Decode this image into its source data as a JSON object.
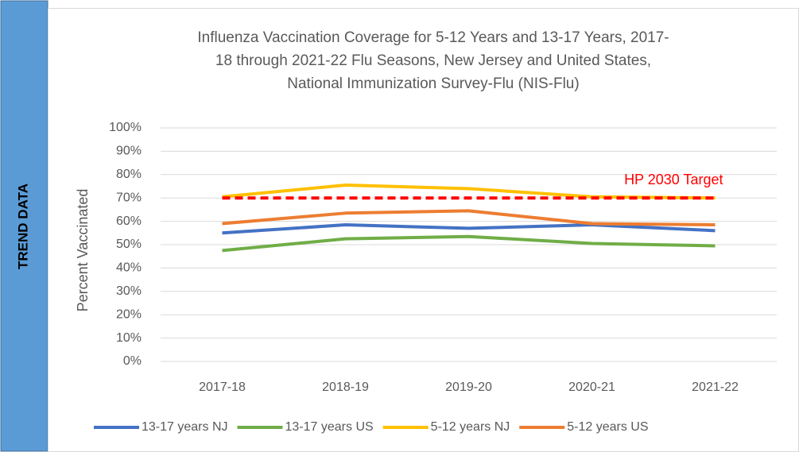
{
  "sidebar": {
    "label": "TREND DATA"
  },
  "chart_data": {
    "type": "line",
    "title": [
      "Influenza Vaccination Coverage for 5-12 Years and 13-17 Years, 2017-",
      "18 through 2021-22 Flu Seasons, New Jersey and United States,",
      "National Immunization Survey-Flu (NIS-Flu)"
    ],
    "y_label": "Percent Vaccinated",
    "categories": [
      "2017-18",
      "2018-19",
      "2019-20",
      "2020-21",
      "2021-22"
    ],
    "series": [
      {
        "name": "13-17 years NJ",
        "color": "#4472c4",
        "values": [
          55,
          58.5,
          57,
          58.5,
          56
        ]
      },
      {
        "name": "13-17 years US",
        "color": "#70ad47",
        "values": [
          47.5,
          52.5,
          53.5,
          50.5,
          49.5
        ]
      },
      {
        "name": "5-12 years NJ",
        "color": "#ffc000",
        "values": [
          70.5,
          75.5,
          74,
          70.5,
          70
        ]
      },
      {
        "name": "5-12 years US",
        "color": "#ed7d31",
        "values": [
          59,
          63.5,
          64.5,
          59,
          58.5
        ]
      }
    ],
    "target": {
      "label": "HP 2030 Target",
      "value": 70,
      "color": "#ff0000"
    },
    "ylim": [
      0,
      100
    ],
    "yticks": [
      {
        "value": 0,
        "label": "0%"
      },
      {
        "value": 10,
        "label": "10%"
      },
      {
        "value": 20,
        "label": "20%"
      },
      {
        "value": 30,
        "label": "30%"
      },
      {
        "value": 40,
        "label": "40%"
      },
      {
        "value": 50,
        "label": "50%"
      },
      {
        "value": 60,
        "label": "60%"
      },
      {
        "value": 70,
        "label": "70%"
      },
      {
        "value": 80,
        "label": "80%"
      },
      {
        "value": 90,
        "label": "90%"
      },
      {
        "value": 100,
        "label": "100%"
      }
    ],
    "grid": true,
    "legend": "bottom"
  }
}
